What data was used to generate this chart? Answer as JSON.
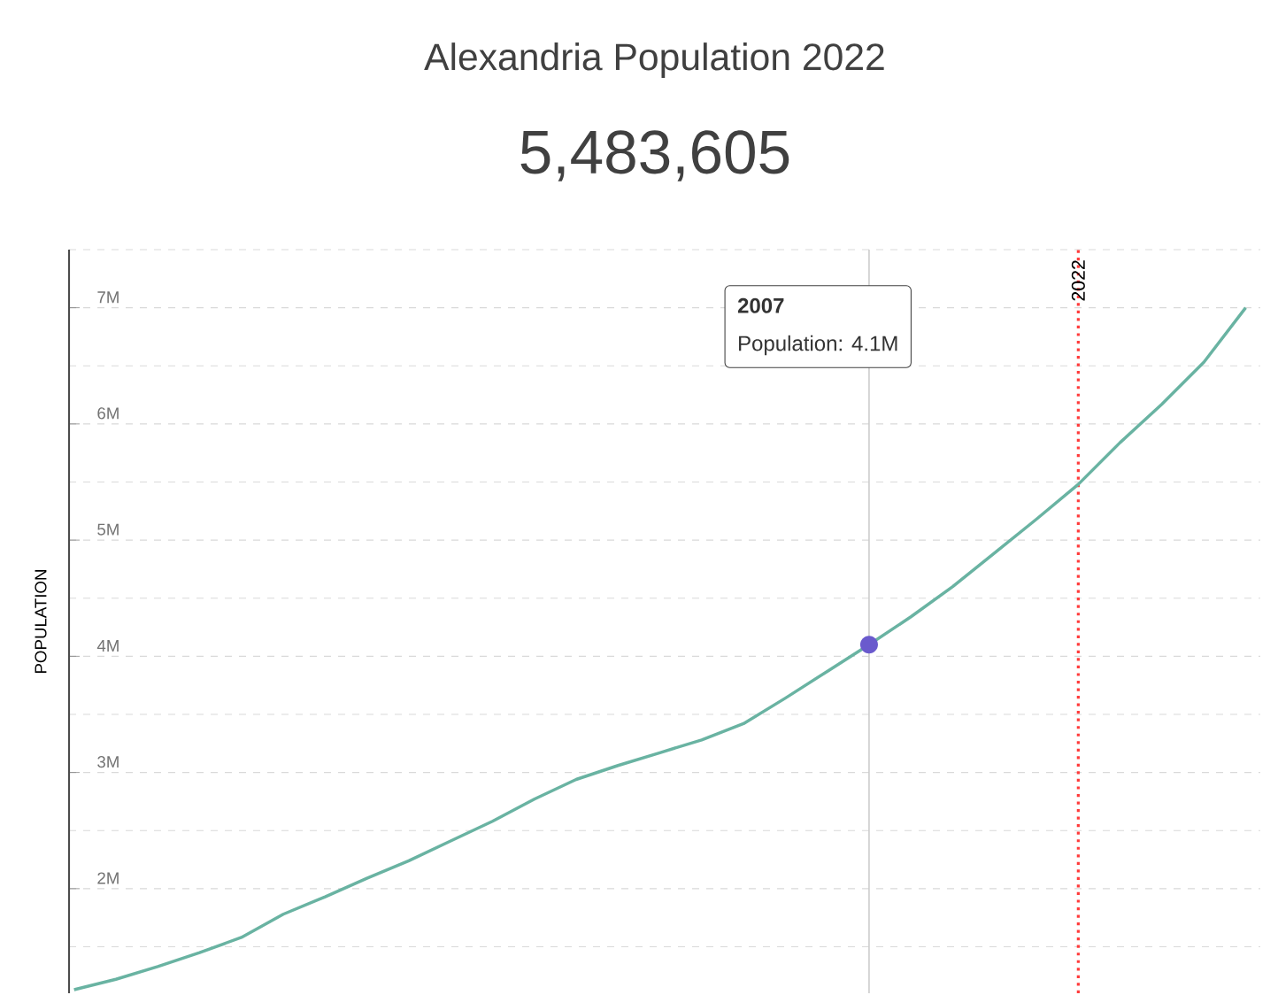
{
  "chart_data": {
    "type": "line",
    "title": "Alexandria Population 2022",
    "subtitle": "5,483,605",
    "ylabel": "POPULATION",
    "categories": [
      null,
      null,
      null,
      null,
      null,
      null,
      null,
      null,
      null,
      null,
      null,
      null,
      null,
      null,
      null,
      null,
      null,
      null,
      null,
      null,
      null,
      null,
      null,
      null,
      null,
      null,
      null,
      null,
      null
    ],
    "series": [
      {
        "color": "#69b3a2",
        "values": [
          1130000,
          1220000,
          1330000,
          1450000,
          1580000,
          1780000,
          1930000,
          2090000,
          2240000,
          2410000,
          2580000,
          2770000,
          2940000,
          3060000,
          3170000,
          3280000,
          3420000,
          3640000,
          3870000,
          4100000,
          4340000,
          4600000,
          4890000,
          5180000,
          5480000,
          5840000,
          6170000,
          6530000,
          7000000
        ]
      }
    ],
    "ylim": [
      1100000,
      7500000
    ],
    "yticks": [
      {
        "value": 1500000,
        "label": null
      },
      {
        "value": 2000000,
        "label": "2M"
      },
      {
        "value": 2500000,
        "label": null
      },
      {
        "value": 3000000,
        "label": "3M"
      },
      {
        "value": 3500000,
        "label": null
      },
      {
        "value": 4000000,
        "label": "4M"
      },
      {
        "value": 4500000,
        "label": null
      },
      {
        "value": 5000000,
        "label": "5M"
      },
      {
        "value": 5500000,
        "label": null
      },
      {
        "value": 6000000,
        "label": "6M"
      },
      {
        "value": 6500000,
        "label": null
      },
      {
        "value": 7000000,
        "label": "7M"
      },
      {
        "value": 7500000,
        "label": null
      }
    ],
    "tick_labels": "y",
    "grid": "y",
    "marker": "none",
    "line_style": "solid",
    "annotations": [
      "2007",
      "Population: 4.1M",
      "2022"
    ]
  }
}
